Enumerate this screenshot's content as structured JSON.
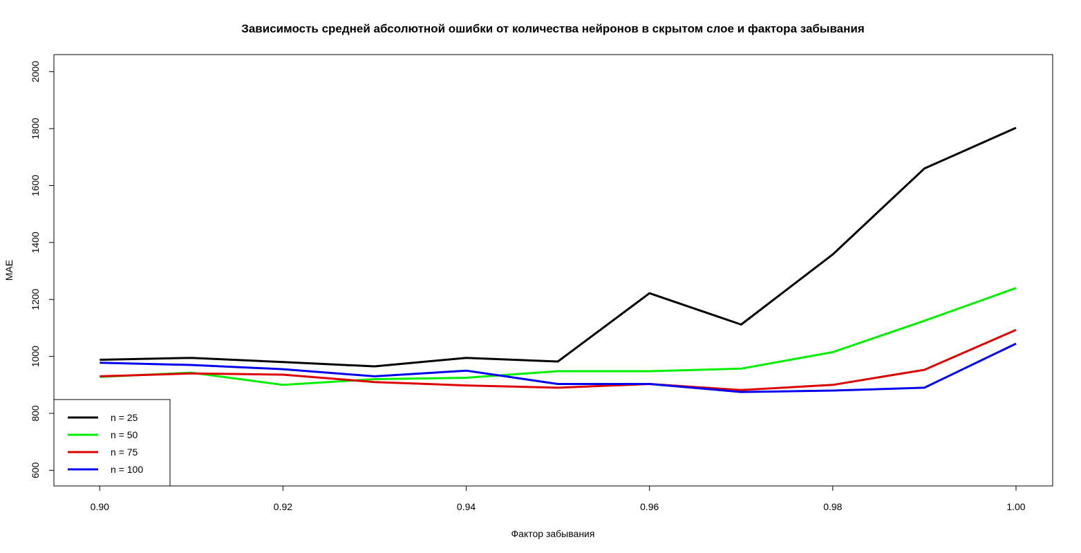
{
  "chart_data": {
    "type": "line",
    "title": "Зависимость средней абсолютной ошибки от количества нейронов в скрытом слое и фактора забывания",
    "xlabel": "Фактор забывания",
    "ylabel": "MAE",
    "xlim": [
      0.895,
      1.004
    ],
    "ylim": [
      545,
      2060
    ],
    "x_ticks": [
      "0.90",
      "0.92",
      "0.94",
      "0.96",
      "0.98",
      "1.00"
    ],
    "y_ticks": [
      "600",
      "800",
      "1000",
      "1200",
      "1400",
      "1600",
      "1800",
      "2000"
    ],
    "x": [
      0.9,
      0.91,
      0.92,
      0.93,
      0.94,
      0.95,
      0.96,
      0.97,
      0.98,
      0.99,
      1.0
    ],
    "series": [
      {
        "name": "n = 25",
        "color": "#000000",
        "values": [
          988,
          995,
          980,
          965,
          995,
          982,
          1222,
          1112,
          1358,
          1660,
          1803
        ]
      },
      {
        "name": "n = 50",
        "color": "#00ee00",
        "values": [
          928,
          943,
          900,
          920,
          925,
          948,
          948,
          957,
          1015,
          1125,
          1240
        ]
      },
      {
        "name": "n = 75",
        "color": "#dd0000",
        "values": [
          930,
          940,
          936,
          910,
          898,
          890,
          903,
          882,
          900,
          953,
          1093
        ]
      },
      {
        "name": "n = 100",
        "color": "#0000ee",
        "values": [
          978,
          970,
          955,
          930,
          950,
          903,
          903,
          875,
          880,
          890,
          1045
        ]
      }
    ],
    "grid": false,
    "legend_position": "bottom-left"
  }
}
